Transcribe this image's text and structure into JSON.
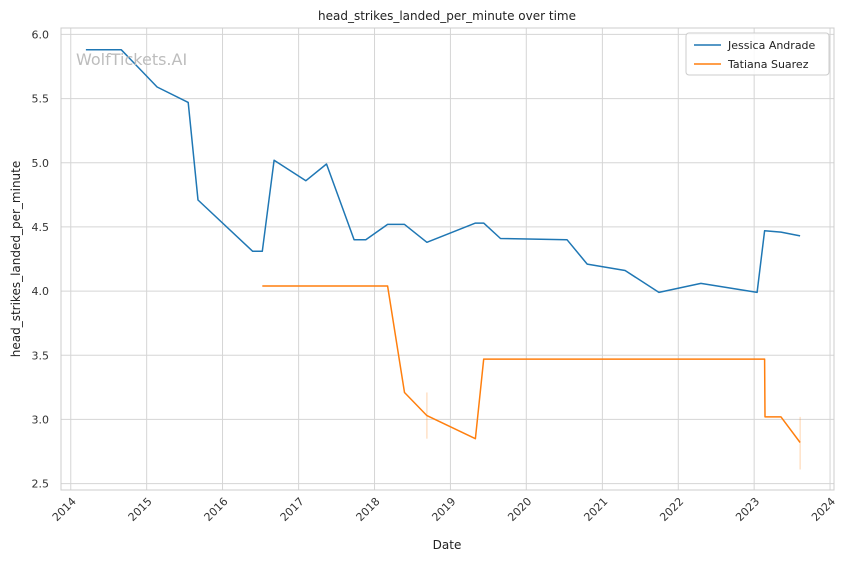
{
  "chart_data": {
    "type": "line",
    "title": "head_strikes_landed_per_minute over time",
    "xlabel": "Date",
    "ylabel": "head_strikes_landed_per_minute",
    "watermark": "WolfTickets.AI",
    "xlim": [
      "2013-11-15",
      "2024-01-20"
    ],
    "ylim": [
      2.45,
      6.05
    ],
    "x_ticks": [
      "2014",
      "2015",
      "2016",
      "2017",
      "2018",
      "2019",
      "2020",
      "2021",
      "2022",
      "2023",
      "2024"
    ],
    "y_ticks": [
      2.5,
      3.0,
      3.5,
      4.0,
      4.5,
      5.0,
      5.5,
      6.0
    ],
    "y_tick_labels": [
      "2.5",
      "3.0",
      "3.5",
      "4.0",
      "4.5",
      "5.0",
      "5.5",
      "6.0"
    ],
    "grid": true,
    "legend": "top-right",
    "series": [
      {
        "name": "Jessica Andrade",
        "color": "#1f77b4",
        "points": [
          [
            "2014-03-15",
            5.88
          ],
          [
            "2014-09-01",
            5.88
          ],
          [
            "2015-02-20",
            5.59
          ],
          [
            "2015-07-20",
            5.47
          ],
          [
            "2015-09-05",
            4.71
          ],
          [
            "2016-05-25",
            4.31
          ],
          [
            "2016-07-10",
            4.31
          ],
          [
            "2016-09-05",
            5.02
          ],
          [
            "2017-02-05",
            4.86
          ],
          [
            "2017-05-15",
            4.99
          ],
          [
            "2017-09-25",
            4.4
          ],
          [
            "2017-11-20",
            4.4
          ],
          [
            "2018-03-05",
            4.52
          ],
          [
            "2018-05-25",
            4.52
          ],
          [
            "2018-09-10",
            4.38
          ],
          [
            "2019-05-01",
            4.53
          ],
          [
            "2019-06-10",
            4.53
          ],
          [
            "2019-08-30",
            4.41
          ],
          [
            "2020-07-15",
            4.4
          ],
          [
            "2020-10-20",
            4.21
          ],
          [
            "2021-04-20",
            4.16
          ],
          [
            "2021-09-30",
            3.99
          ],
          [
            "2022-04-20",
            4.06
          ],
          [
            "2023-01-15",
            3.99
          ],
          [
            "2023-02-20",
            4.47
          ],
          [
            "2023-05-10",
            4.46
          ],
          [
            "2023-08-10",
            4.43
          ]
        ]
      },
      {
        "name": "Tatiana Suarez",
        "color": "#ff7f0e",
        "points": [
          [
            "2016-07-10",
            4.04
          ],
          [
            "2018-03-05",
            4.04
          ],
          [
            "2018-05-25",
            3.21
          ],
          [
            "2018-09-10",
            3.03
          ],
          [
            "2019-05-01",
            2.85
          ],
          [
            "2019-06-10",
            3.47
          ],
          [
            "2023-02-20",
            3.47
          ],
          [
            "2023-02-22",
            3.02
          ],
          [
            "2023-05-10",
            3.02
          ],
          [
            "2023-08-10",
            2.82
          ]
        ]
      }
    ],
    "error_marks": [
      {
        "color": "#ff7f0e",
        "x": "2018-09-10",
        "low": 2.85,
        "high": 3.21
      },
      {
        "color": "#ff7f0e",
        "x": "2023-08-10",
        "low": 2.61,
        "high": 3.02
      }
    ]
  }
}
